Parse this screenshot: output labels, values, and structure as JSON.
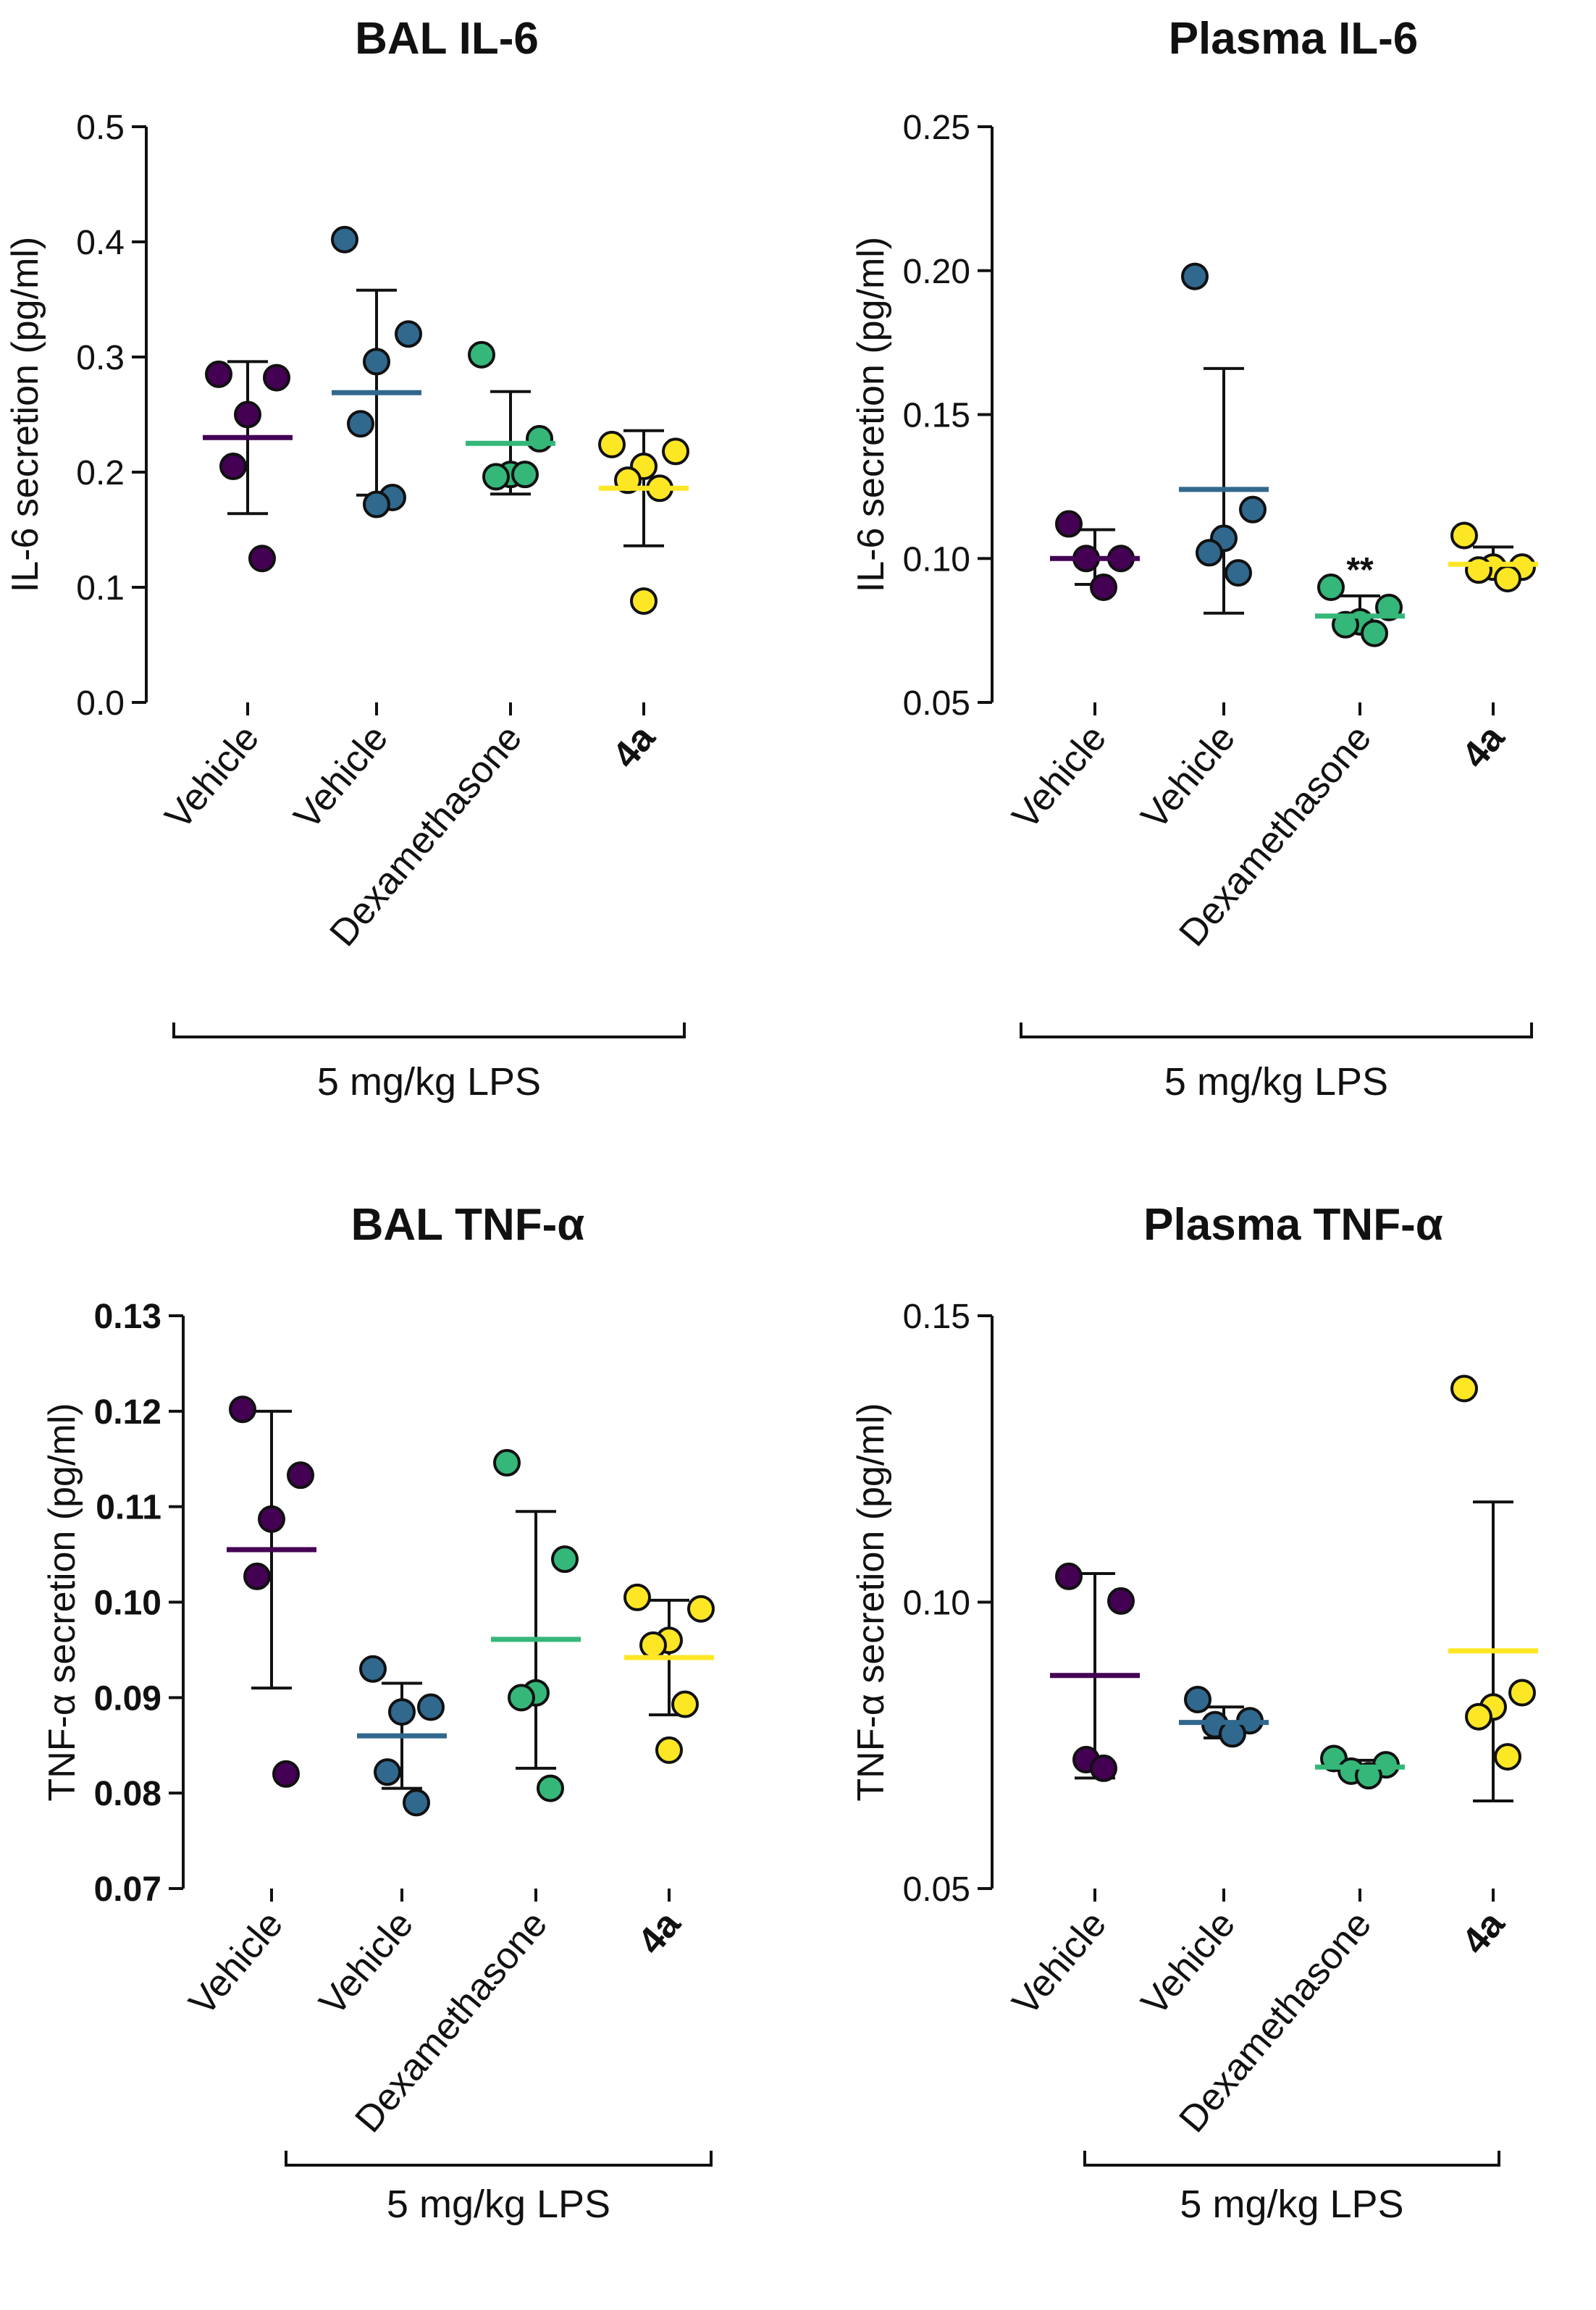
{
  "chart_data": [
    {
      "type": "scatter",
      "title": "BAL IL-6",
      "ylabel": "IL-6 secretion (pg/ml)",
      "ylim": [
        0.0,
        0.5
      ],
      "yticks": [
        "0.0",
        "0.1",
        "0.2",
        "0.3",
        "0.4",
        "0.5"
      ],
      "ytick_values": [
        0.0,
        0.1,
        0.2,
        0.3,
        0.4,
        0.5
      ],
      "ytick_bold": false,
      "categories": [
        "Vehicle",
        "Vehicle",
        "Dexamethasone",
        "4a"
      ],
      "category_bold": [
        false,
        false,
        false,
        true
      ],
      "group_label": "5 mg/kg LPS",
      "series": [
        {
          "name": "Vehicle",
          "color": "#440154",
          "points": [
            0.285,
            0.282,
            0.25,
            0.205,
            0.125
          ],
          "mean": 0.23,
          "sd_low": 0.164,
          "sd_high": 0.296
        },
        {
          "name": "Vehicle",
          "color": "#31688e",
          "points": [
            0.402,
            0.32,
            0.296,
            0.242,
            0.178,
            0.172
          ],
          "mean": 0.269,
          "sd_low": 0.18,
          "sd_high": 0.358
        },
        {
          "name": "Dexamethasone",
          "color": "#35b779",
          "points": [
            0.302,
            0.229,
            0.198,
            0.196,
            0.198
          ],
          "mean": 0.225,
          "sd_low": 0.181,
          "sd_high": 0.27
        },
        {
          "name": "4a",
          "color": "#fde725",
          "points": [
            0.224,
            0.218,
            0.205,
            0.193,
            0.186,
            0.088
          ],
          "mean": 0.186,
          "sd_low": 0.136,
          "sd_high": 0.236
        }
      ]
    },
    {
      "type": "scatter",
      "title": "Plasma IL-6",
      "ylabel": "IL-6 secretion (pg/ml)",
      "ylim": [
        0.05,
        0.25
      ],
      "yticks": [
        "0.05",
        "0.10",
        "0.15",
        "0.20",
        "0.25"
      ],
      "ytick_values": [
        0.05,
        0.1,
        0.15,
        0.2,
        0.25
      ],
      "ytick_bold": false,
      "categories": [
        "Vehicle",
        "Vehicle",
        "Dexamethasone",
        "4a"
      ],
      "category_bold": [
        false,
        false,
        false,
        true
      ],
      "group_label": "5 mg/kg LPS",
      "significance": {
        "category_index": 2,
        "label": "**"
      },
      "series": [
        {
          "name": "Vehicle",
          "color": "#440154",
          "points": [
            0.112,
            0.1,
            0.1,
            0.09
          ],
          "mean": 0.1,
          "sd_low": 0.091,
          "sd_high": 0.11
        },
        {
          "name": "Vehicle",
          "color": "#31688e",
          "points": [
            0.198,
            0.117,
            0.107,
            0.102,
            0.095
          ],
          "mean": 0.124,
          "sd_low": 0.081,
          "sd_high": 0.166
        },
        {
          "name": "Dexamethasone",
          "color": "#35b779",
          "points": [
            0.09,
            0.083,
            0.078,
            0.077,
            0.074
          ],
          "mean": 0.08,
          "sd_low": 0.074,
          "sd_high": 0.087
        },
        {
          "name": "4a",
          "color": "#fde725",
          "points": [
            0.108,
            0.097,
            0.097,
            0.096,
            0.093
          ],
          "mean": 0.098,
          "sd_low": 0.093,
          "sd_high": 0.104
        }
      ]
    },
    {
      "type": "scatter",
      "title": "BAL TNF-α",
      "ylabel": "TNF-α secretion (pg/ml)",
      "ylim": [
        0.07,
        0.13
      ],
      "yticks": [
        "0.07",
        "0.08",
        "0.09",
        "0.10",
        "0.11",
        "0.12",
        "0.13"
      ],
      "ytick_values": [
        0.07,
        0.08,
        0.09,
        0.1,
        0.11,
        0.12,
        0.13
      ],
      "ytick_bold": true,
      "categories": [
        "Vehicle",
        "Vehicle",
        "Dexamethasone",
        "4a"
      ],
      "category_bold": [
        false,
        false,
        false,
        true
      ],
      "group_label": "5 mg/kg LPS",
      "series": [
        {
          "name": "Vehicle",
          "color": "#440154",
          "points": [
            0.1202,
            0.1133,
            0.1087,
            0.1027,
            0.082
          ],
          "mean": 0.1055,
          "sd_low": 0.091,
          "sd_high": 0.12
        },
        {
          "name": "Vehicle",
          "color": "#31688e",
          "points": [
            0.093,
            0.089,
            0.0885,
            0.0822,
            0.079
          ],
          "mean": 0.086,
          "sd_low": 0.0805,
          "sd_high": 0.0915
        },
        {
          "name": "Dexamethasone",
          "color": "#35b779",
          "points": [
            0.1146,
            0.1045,
            0.0905,
            0.09,
            0.0805
          ],
          "mean": 0.0961,
          "sd_low": 0.0826,
          "sd_high": 0.1095
        },
        {
          "name": "4a",
          "color": "#fde725",
          "points": [
            0.1005,
            0.0993,
            0.096,
            0.0955,
            0.0893,
            0.0845
          ],
          "mean": 0.0942,
          "sd_low": 0.0882,
          "sd_high": 0.1002
        }
      ]
    },
    {
      "type": "scatter",
      "title": "Plasma TNF-α",
      "ylabel": "TNF-α secretion (pg/ml)",
      "ylim": [
        0.05,
        0.15
      ],
      "yticks": [
        "0.05",
        "0.10",
        "0.15"
      ],
      "ytick_values": [
        0.05,
        0.1,
        0.15
      ],
      "ytick_bold": false,
      "categories": [
        "Vehicle",
        "Vehicle",
        "Dexamethasone",
        "4a"
      ],
      "category_bold": [
        false,
        false,
        false,
        true
      ],
      "group_label": "5 mg/kg LPS",
      "series": [
        {
          "name": "Vehicle",
          "color": "#440154",
          "points": [
            0.1045,
            0.1002,
            0.0725,
            0.071
          ],
          "mean": 0.0872,
          "sd_low": 0.0693,
          "sd_high": 0.105
        },
        {
          "name": "Vehicle",
          "color": "#31688e",
          "points": [
            0.083,
            0.0793,
            0.0786,
            0.077
          ],
          "mean": 0.079,
          "sd_low": 0.0763,
          "sd_high": 0.0817
        },
        {
          "name": "Dexamethasone",
          "color": "#35b779",
          "points": [
            0.0727,
            0.0716,
            0.0705,
            0.0697
          ],
          "mean": 0.0712,
          "sd_low": 0.07,
          "sd_high": 0.0724
        },
        {
          "name": "4a",
          "color": "#fde725",
          "points": [
            0.1373,
            0.0842,
            0.0817,
            0.08,
            0.073
          ],
          "mean": 0.0915,
          "sd_low": 0.0653,
          "sd_high": 0.1175
        }
      ]
    }
  ]
}
